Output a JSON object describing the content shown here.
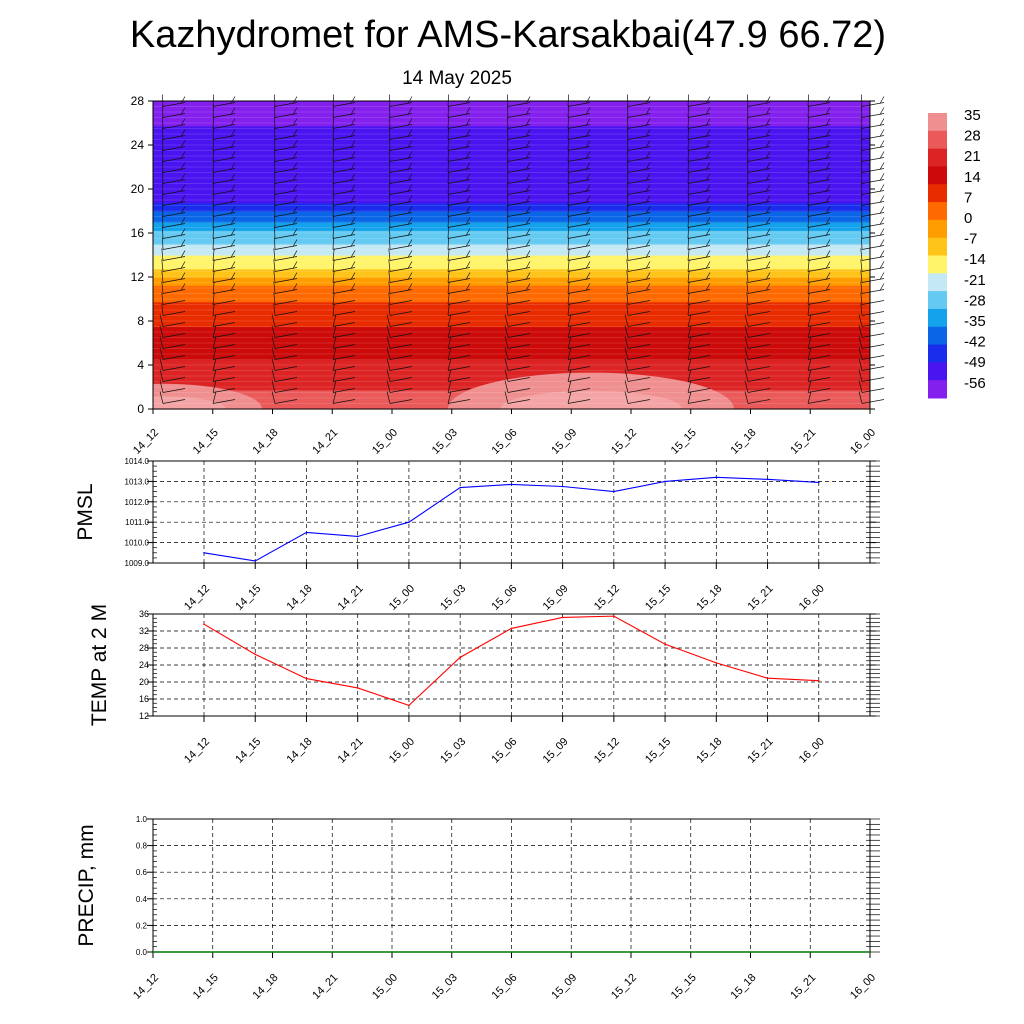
{
  "title": "Kazhydromet for AMS-Karsakbai(47.9 66.72)",
  "subtitle": "14 May 2025",
  "colors": {
    "pmsl_line": "#0000ff",
    "temp_line": "#ff0000",
    "precip_line": "#007700",
    "grid": "#000000",
    "axis": "#000000"
  },
  "chart_data": [
    {
      "type": "heatmap",
      "name": "vertical-cross-section",
      "x": [
        "14_12",
        "14_15",
        "14_18",
        "14_21",
        "15_00",
        "15_03",
        "15_06",
        "15_09",
        "15_12",
        "15_15",
        "15_18",
        "15_21",
        "16_00"
      ],
      "y_ticks": [
        0,
        4,
        8,
        12,
        16,
        20,
        24,
        28
      ],
      "ylim": [
        0,
        28
      ],
      "colorbar_labels": [
        "35",
        "28",
        "21",
        "14",
        "7",
        "0",
        "-7",
        "-14",
        "-21",
        "-28",
        "-35",
        "-42",
        "-49",
        "-56"
      ],
      "colorbar_colors": [
        "#f08f8f",
        "#ea5a5a",
        "#dc2424",
        "#cc0a0a",
        "#e82c00",
        "#ff6a00",
        "#ff9c00",
        "#ffc41a",
        "#fff46a",
        "#c4e8f4",
        "#64caf2",
        "#14a2ec",
        "#0a66e6",
        "#1a2cec",
        "#4a14f0",
        "#8420ee"
      ],
      "temperature_profile": [
        {
          "height": 0,
          "temp": 30
        },
        {
          "height": 4,
          "temp": 20
        },
        {
          "height": 8,
          "temp": 12
        },
        {
          "height": 11,
          "temp": 3
        },
        {
          "height": 13,
          "temp": -14
        },
        {
          "height": 16,
          "temp": -30
        },
        {
          "height": 19,
          "temp": -52
        },
        {
          "height": 21,
          "temp": -56
        },
        {
          "height": 24,
          "temp": -54
        },
        {
          "height": 28,
          "temp": -60
        }
      ],
      "grid": false,
      "overlay": "wind barbs"
    },
    {
      "type": "line",
      "name": "pmsl",
      "ylabel": "PMSL",
      "x": [
        "14_12",
        "14_15",
        "14_18",
        "14_21",
        "15_00",
        "15_03",
        "15_06",
        "15_09",
        "15_12",
        "15_15",
        "15_18",
        "15_21",
        "16_00"
      ],
      "values": [
        1009.5,
        1009.1,
        1010.5,
        1010.3,
        1011.0,
        1012.7,
        1012.85,
        1012.75,
        1012.5,
        1013.0,
        1013.2,
        1013.1,
        1012.95
      ],
      "ylim": [
        1009.0,
        1014.0
      ],
      "yticks": [
        "1009.0",
        "1010.0",
        "1011.0",
        "1012.0",
        "1013.0",
        "1014.0"
      ],
      "grid": true
    },
    {
      "type": "line",
      "name": "temp-2m",
      "ylabel": "TEMP at 2 M",
      "x": [
        "14_12",
        "14_15",
        "14_18",
        "14_21",
        "15_00",
        "15_03",
        "15_06",
        "15_09",
        "15_12",
        "15_15",
        "15_18",
        "15_21",
        "16_00"
      ],
      "values": [
        33.6,
        26.5,
        20.8,
        18.6,
        14.5,
        25.8,
        32.6,
        35.2,
        35.5,
        28.9,
        24.5,
        20.9,
        20.3
      ],
      "ylim": [
        12,
        36
      ],
      "yticks": [
        "12",
        "16",
        "20",
        "24",
        "28",
        "32",
        "36"
      ],
      "grid": true
    },
    {
      "type": "line",
      "name": "precip",
      "ylabel": "PRECIP, mm",
      "x": [
        "14_12",
        "14_15",
        "14_18",
        "14_21",
        "15_00",
        "15_03",
        "15_06",
        "15_09",
        "15_12",
        "15_15",
        "15_18",
        "15_21",
        "16_00"
      ],
      "values": [
        0,
        0,
        0,
        0,
        0,
        0,
        0,
        0,
        0,
        0,
        0,
        0,
        0
      ],
      "ylim": [
        0.0,
        1.0
      ],
      "yticks": [
        "0.0",
        "0.2",
        "0.4",
        "0.6",
        "0.8",
        "1.0"
      ],
      "grid": true
    }
  ]
}
